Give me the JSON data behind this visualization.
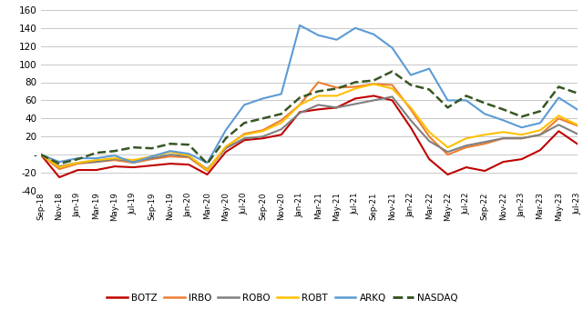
{
  "x_labels": [
    "Sep-18",
    "Nov-18",
    "Jan-19",
    "Mar-19",
    "May-19",
    "Jul-19",
    "Sep-19",
    "Nov-19",
    "Jan-20",
    "Mar-20",
    "May-20",
    "Jul-20",
    "Sep-20",
    "Nov-20",
    "Jan-21",
    "Mar-21",
    "May-21",
    "Jul-21",
    "Sep-21",
    "Nov-21",
    "Jan-22",
    "Mar-22",
    "May-22",
    "Jul-22",
    "Sep-22",
    "Nov-22",
    "Jan-23",
    "Mar-23",
    "May-23",
    "Jul-23"
  ],
  "ylim": [
    -40,
    160
  ],
  "yticks": [
    -40,
    -20,
    0,
    20,
    40,
    60,
    80,
    100,
    120,
    140,
    160
  ],
  "series": {
    "BOTZ": {
      "color": "#c00000",
      "linestyle": "-",
      "linewidth": 1.5,
      "values": [
        0,
        -25,
        -17,
        -17,
        -13,
        -14,
        -12,
        -10,
        -11,
        -22,
        3,
        16,
        18,
        22,
        47,
        50,
        52,
        62,
        65,
        60,
        30,
        -5,
        -22,
        -14,
        -18,
        -8,
        -5,
        5,
        26,
        12
      ]
    },
    "IRBO": {
      "color": "#ed7d31",
      "linestyle": "-",
      "linewidth": 1.5,
      "values": [
        0,
        -16,
        -10,
        -8,
        -6,
        -9,
        -5,
        -2,
        -3,
        -18,
        8,
        23,
        27,
        38,
        55,
        80,
        74,
        75,
        78,
        77,
        50,
        20,
        0,
        8,
        12,
        18,
        18,
        22,
        40,
        32
      ]
    },
    "ROBO": {
      "color": "#7f7f7f",
      "linestyle": "-",
      "linewidth": 1.5,
      "values": [
        0,
        -13,
        -9,
        -8,
        -5,
        -7,
        -4,
        0,
        -2,
        -16,
        7,
        18,
        20,
        28,
        46,
        55,
        52,
        56,
        60,
        64,
        38,
        15,
        3,
        10,
        14,
        18,
        18,
        22,
        33,
        23
      ]
    },
    "ROBT": {
      "color": "#ffc000",
      "linestyle": "-",
      "linewidth": 1.5,
      "values": [
        0,
        -14,
        -9,
        -6,
        -4,
        -6,
        -2,
        3,
        -1,
        -17,
        9,
        22,
        26,
        35,
        55,
        65,
        65,
        73,
        78,
        73,
        52,
        25,
        8,
        18,
        22,
        25,
        22,
        27,
        43,
        33
      ]
    },
    "ARKQ": {
      "color": "#5b9bd5",
      "linestyle": "-",
      "linewidth": 1.5,
      "values": [
        0,
        -8,
        -4,
        -4,
        -1,
        -9,
        -2,
        4,
        1,
        -9,
        27,
        55,
        62,
        67,
        143,
        132,
        127,
        140,
        133,
        118,
        88,
        95,
        60,
        60,
        45,
        38,
        30,
        35,
        63,
        50
      ]
    },
    "NASDAQ": {
      "color": "#375623",
      "linestyle": "--",
      "linewidth": 1.8,
      "values": [
        0,
        -10,
        -5,
        2,
        4,
        8,
        7,
        12,
        11,
        -10,
        18,
        35,
        40,
        45,
        63,
        70,
        73,
        80,
        82,
        92,
        77,
        72,
        52,
        65,
        57,
        50,
        42,
        48,
        75,
        68
      ]
    }
  },
  "legend_order": [
    "BOTZ",
    "IRBO",
    "ROBO",
    "ROBT",
    "ARKQ",
    "NASDAQ"
  ],
  "background_color": "#ffffff",
  "grid_color": "#c8c8c8"
}
